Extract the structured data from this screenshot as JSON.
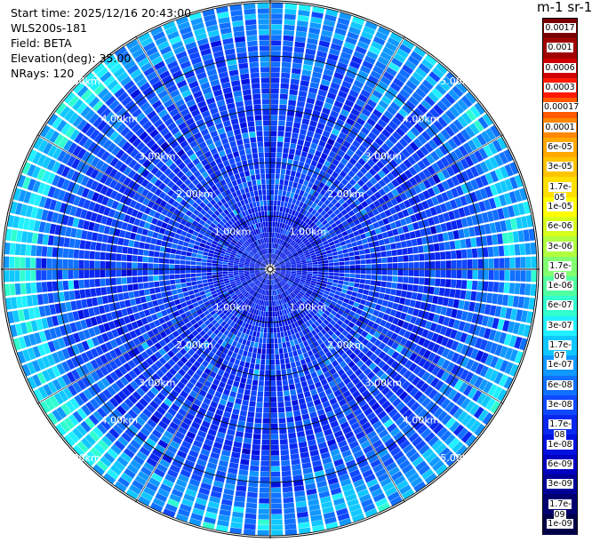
{
  "info": {
    "start_time": "Start time: 2025/12/16 20:43:00",
    "instrument": "WLS200s-181",
    "field": "Field: BETA",
    "elevation": "Elevation(deg): 35.00",
    "nrays": "NRays: 120"
  },
  "colorbar": {
    "title": "m-1 sr-1",
    "labels": [
      "0.0017",
      "0.001",
      "0.0006",
      "0.0003",
      "0.00017",
      "0.0001",
      "6e-05",
      "3e-05",
      "1.7e-05",
      "1e-05",
      "6e-06",
      "3e-06",
      "1.7e-06",
      "1e-06",
      "6e-07",
      "3e-07",
      "1.7e-07",
      "1e-07",
      "6e-08",
      "3e-08",
      "1.7e-08",
      "1e-08",
      "6e-09",
      "3e-09",
      "1.7e-09",
      "1e-09"
    ],
    "colors": [
      "#7a0000",
      "#a00000",
      "#d00000",
      "#ff1a00",
      "#ff5a00",
      "#ff8800",
      "#ffaa00",
      "#ffc400",
      "#ffe000",
      "#ffff00",
      "#d8ff1a",
      "#b0ff40",
      "#80ff70",
      "#50ffa0",
      "#30ffd0",
      "#20f0ff",
      "#10c8ff",
      "#1098ff",
      "#1070ff",
      "#1048ff",
      "#0a28f0",
      "#0010e0",
      "#0000c0",
      "#000098",
      "#000070",
      "#000048"
    ]
  },
  "chart_data": {
    "type": "heatmap",
    "projection": "polar-ppi",
    "nrays": 120,
    "range_rings_km": [
      1,
      2,
      3,
      4,
      5
    ],
    "ring_labels": [
      "1.00km",
      "2.00km",
      "3.00km",
      "4.00km",
      "5.00km"
    ],
    "max_range_km": 5.05,
    "spoke_angles_deg": [
      0,
      30,
      60,
      90,
      120,
      150,
      180,
      210,
      240,
      270,
      300,
      330
    ],
    "range_gate_km": 0.1,
    "field_range": [
      "1e-09",
      "0.0017"
    ],
    "typical_value_by_range": [
      {
        "range_km": 0.5,
        "beta": "1e-08"
      },
      {
        "range_km": 2.0,
        "beta": "1.7e-08"
      },
      {
        "range_km": 3.5,
        "beta": "3e-08"
      },
      {
        "range_km": 4.8,
        "beta": "1e-07"
      }
    ]
  }
}
